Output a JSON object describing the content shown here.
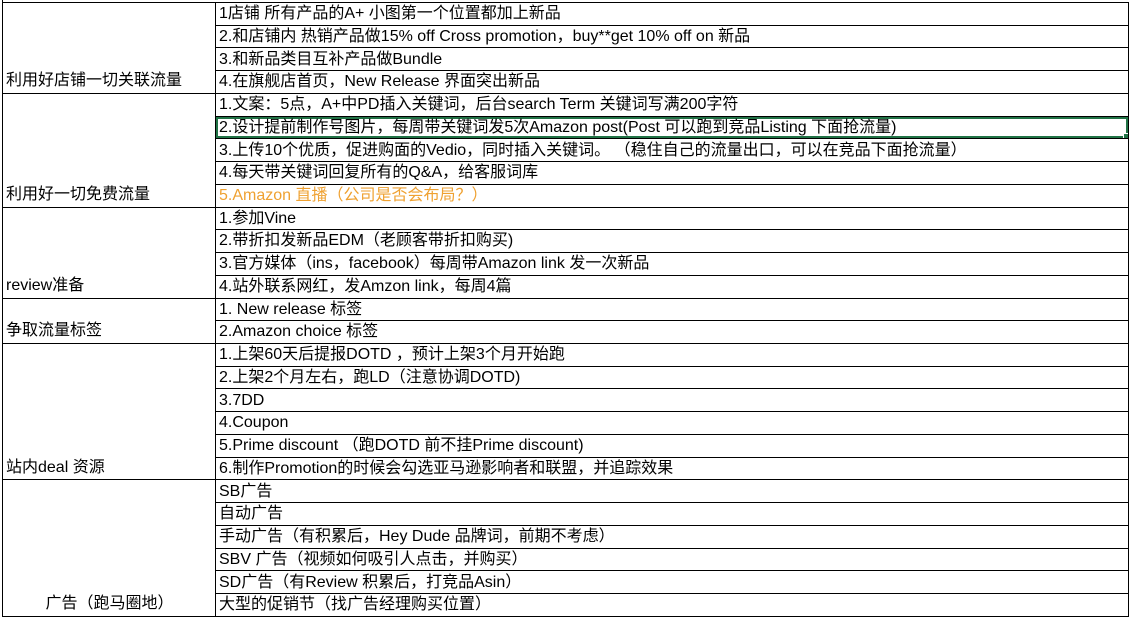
{
  "colors": {
    "grid": "#000000",
    "selection_border": "#217346",
    "orange_text": "#EFA131",
    "background": "#FFFFFF",
    "text": "#000000"
  },
  "table": {
    "sections": [
      {
        "label": "利用好店铺一切关联流量",
        "rows": [
          {
            "text": "1店铺 所有产品的A+ 小图第一个位置都加上新品"
          },
          {
            "text": "2.和店铺内 热销产品做15% off Cross promotion，buy**get 10% off on 新品"
          },
          {
            "text": "3.和新品类目互补产品做Bundle"
          },
          {
            "text": "4.在旗舰店首页，New Release 界面突出新品"
          }
        ]
      },
      {
        "label": "利用好一切免费流量",
        "rows": [
          {
            "text": "1.文案：5点，A+中PD插入关键词，后台search Term 关键词写满200字符"
          },
          {
            "text": "2.设计提前制作号图片，每周带关键词发5次Amazon post(Post 可以跑到竞品Listing 下面抢流量)",
            "selected": true
          },
          {
            "text": "3.上传10个优质，促进购面的Vedio，同时插入关键词。 （稳住自己的流量出口，可以在竞品下面抢流量）"
          },
          {
            "text": "4.每天带关键词回复所有的Q&A，给客服词库"
          },
          {
            "text": "5.Amazon 直播（公司是否会布局？）",
            "color": "orange"
          }
        ]
      },
      {
        "label": "review准备",
        "rows": [
          {
            "text": "1.参加Vine"
          },
          {
            "text": "2.带折扣发新品EDM（老顾客带折扣购买)"
          },
          {
            "text": "3.官方媒体（ins，facebook）每周带Amazon link 发一次新品"
          },
          {
            "text": "4.站外联系网红，发Amzon link，每周4篇"
          }
        ]
      },
      {
        "label": "争取流量标签",
        "rows": [
          {
            "text": "1. New release 标签"
          },
          {
            "text": "2.Amazon choice 标签"
          }
        ]
      },
      {
        "label": "站内deal 资源",
        "rows": [
          {
            "text": "1.上架60天后提报DOTD ，预计上架3个月开始跑"
          },
          {
            "text": "2.上架2个月左右，跑LD（注意协调DOTD)"
          },
          {
            "text": "3.7DD"
          },
          {
            "text": "4.Coupon"
          },
          {
            "text": "5.Prime discount （跑DOTD 前不挂Prime discount)"
          },
          {
            "text": "6.制作Promotion的时候会勾选亚马逊影响者和联盟，并追踪效果"
          }
        ]
      },
      {
        "label": "广告（跑马圈地）",
        "rows": [
          {
            "text": "SB广告"
          },
          {
            "text": "自动广告"
          },
          {
            "text": "手动广告（有积累后，Hey Dude 品牌词，前期不考虑）"
          },
          {
            "text": "SBV 广告（视频如何吸引人点击，并购买）"
          },
          {
            "text": "SD广告（有Review 积累后，打竞品Asin）"
          },
          {
            "text": "大型的促销节（找广告经理购买位置）"
          }
        ]
      }
    ]
  }
}
